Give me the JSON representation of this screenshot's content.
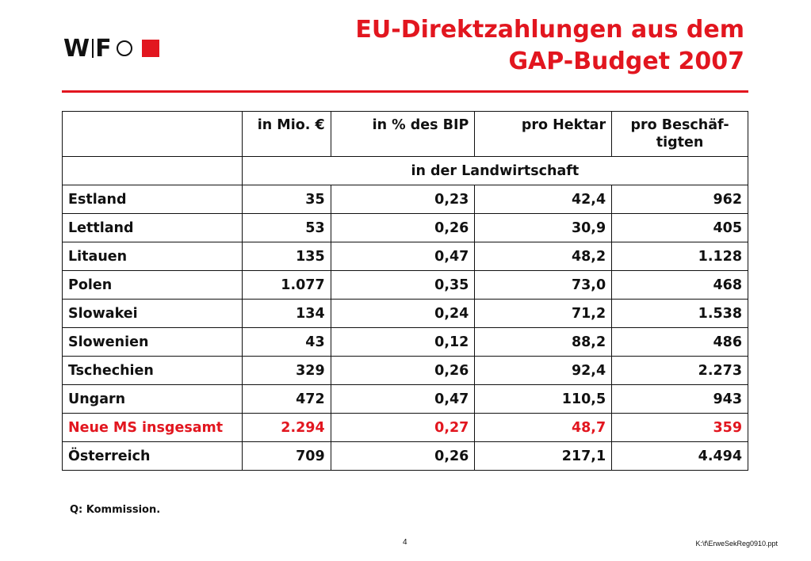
{
  "logo": {
    "text_w": "W",
    "text_f": "F"
  },
  "title": {
    "line1": "EU-Direktzahlungen aus dem",
    "line2": "GAP-Budget 2007"
  },
  "colors": {
    "accent": "#e2161f"
  },
  "table": {
    "headers": [
      "",
      "in Mio. €",
      "in % des BIP",
      "pro Hektar",
      "pro Beschäf-\ntigten"
    ],
    "subheader": "in der Landwirtschaft",
    "rows": [
      [
        "Estland",
        "35",
        "0,23",
        "42,4",
        "962"
      ],
      [
        "Lettland",
        "53",
        "0,26",
        "30,9",
        "405"
      ],
      [
        "Litauen",
        "135",
        "0,47",
        "48,2",
        "1.128"
      ],
      [
        "Polen",
        "1.077",
        "0,35",
        "73,0",
        "468"
      ],
      [
        "Slowakei",
        "134",
        "0,24",
        "71,2",
        "1.538"
      ],
      [
        "Slowenien",
        "43",
        "0,12",
        "88,2",
        "486"
      ],
      [
        "Tschechien",
        "329",
        "0,26",
        "92,4",
        "2.273"
      ],
      [
        "Ungarn",
        "472",
        "0,47",
        "110,5",
        "943"
      ],
      [
        "Neue MS insgesamt",
        "2.294",
        "0,27",
        "48,7",
        "359"
      ],
      [
        "Österreich",
        "709",
        "0,26",
        "217,1",
        "4.494"
      ]
    ],
    "highlight_row_index": 8
  },
  "footer": {
    "source": "Q:  Kommission.",
    "page_number": "4",
    "file_path": "K:\\f\\ErweSekReg0910.ppt"
  }
}
